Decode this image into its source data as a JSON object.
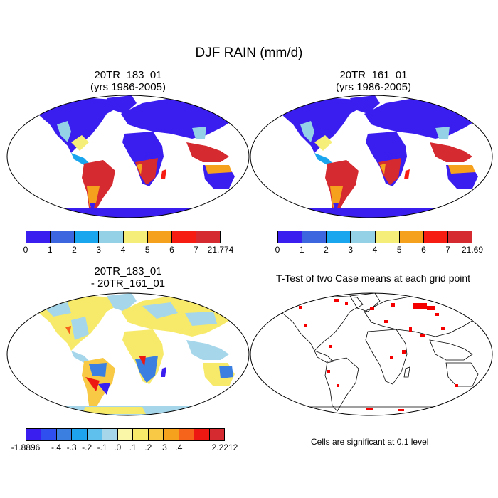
{
  "title": "DJF RAIN (mm/d)",
  "panels": [
    {
      "title_line1": "20TR_183_01",
      "title_line2": "(yrs 1986-2005)"
    },
    {
      "title_line1": "20TR_161_01",
      "title_line2": "(yrs 1986-2005)"
    },
    {
      "title_line1": "20TR_183_01",
      "title_line2": "- 20TR_161_01"
    },
    {
      "title_line1": "T-Test of two Case means at each grid point",
      "title_line2": ""
    }
  ],
  "colorbars": {
    "panel1": {
      "colors": [
        "#3a1eef",
        "#3b66e0",
        "#1aa6ee",
        "#94d0e6",
        "#f5ef7a",
        "#f6a11e",
        "#f61c12",
        "#d52a30"
      ],
      "labels": [
        "0",
        "1",
        "2",
        "3",
        "4",
        "5",
        "6",
        "7",
        "21.774"
      ]
    },
    "panel2": {
      "colors": [
        "#3a1eef",
        "#3b66e0",
        "#1aa6ee",
        "#94d0e6",
        "#f5ef7a",
        "#f6a11e",
        "#f61c12",
        "#d52a30"
      ],
      "labels": [
        "0",
        "1",
        "2",
        "3",
        "4",
        "5",
        "6",
        "7",
        "21.69"
      ]
    },
    "diff": {
      "colors": [
        "#3a1eef",
        "#2f4fee",
        "#3b7fe0",
        "#1ea4ef",
        "#5fc0ee",
        "#a5d6ea",
        "#fbf7a8",
        "#f7ea6a",
        "#f8c944",
        "#f6a11e",
        "#f5641a",
        "#ee1812",
        "#d52a30"
      ],
      "labels": [
        "-1.8896",
        "-.4",
        "-.3",
        "-.2",
        "-.1",
        ".0",
        ".1",
        ".2",
        ".3",
        ".4",
        "2.2212"
      ]
    }
  },
  "note": "Cells are significant at 0.1 level"
}
